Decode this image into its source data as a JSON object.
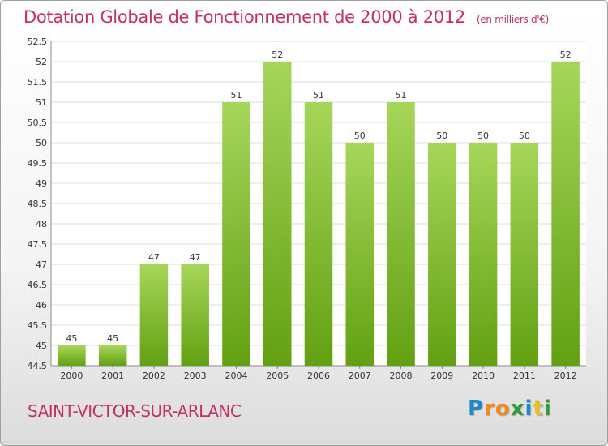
{
  "header": {
    "title": "Dotation Globale de Fonctionnement de 2000 à 2012",
    "unit": "(en milliers d'€)"
  },
  "footer": {
    "commune": "SAINT-VICTOR-SUR-ARLANC",
    "logo": {
      "letters": [
        "P",
        "r",
        "o",
        "x",
        "i",
        "t",
        "i"
      ],
      "colors": [
        "#1e88c8",
        "#f08a1c",
        "#f08a1c",
        "#2e9e3a",
        "#1e88c8",
        "#e8c21a",
        "#2e9e3a"
      ]
    }
  },
  "colors": {
    "bar_light": "#a6d65a",
    "bar_dark": "#62a012",
    "grid": "#dddddd",
    "accent": "#c0325f"
  },
  "chart_data": {
    "type": "bar",
    "title": "Dotation Globale de Fonctionnement de 2000 à 2012",
    "ylabel": "(en milliers d'€)",
    "categories": [
      "2000",
      "2001",
      "2002",
      "2003",
      "2004",
      "2005",
      "2006",
      "2007",
      "2008",
      "2009",
      "2010",
      "2011",
      "2012"
    ],
    "values": [
      45,
      45,
      47,
      47,
      51,
      52,
      51,
      50,
      51,
      50,
      50,
      50,
      52
    ],
    "value_labels": [
      "45",
      "45",
      "47",
      "47",
      "51",
      "52",
      "51",
      "50",
      "51",
      "50",
      "50",
      "50",
      "52"
    ],
    "ylim": [
      44.5,
      52.5
    ],
    "yticks": [
      44.5,
      45,
      45.5,
      46,
      46.5,
      47,
      47.5,
      48,
      48.5,
      49,
      49.5,
      50,
      50.5,
      51,
      51.5,
      52,
      52.5
    ],
    "ytick_labels": [
      "44.5",
      "45",
      "45.5",
      "46",
      "46.5",
      "47",
      "47.5",
      "48",
      "48.5",
      "49",
      "49.5",
      "50",
      "50.5",
      "51",
      "51.5",
      "52",
      "52.5"
    ],
    "grid": true
  }
}
